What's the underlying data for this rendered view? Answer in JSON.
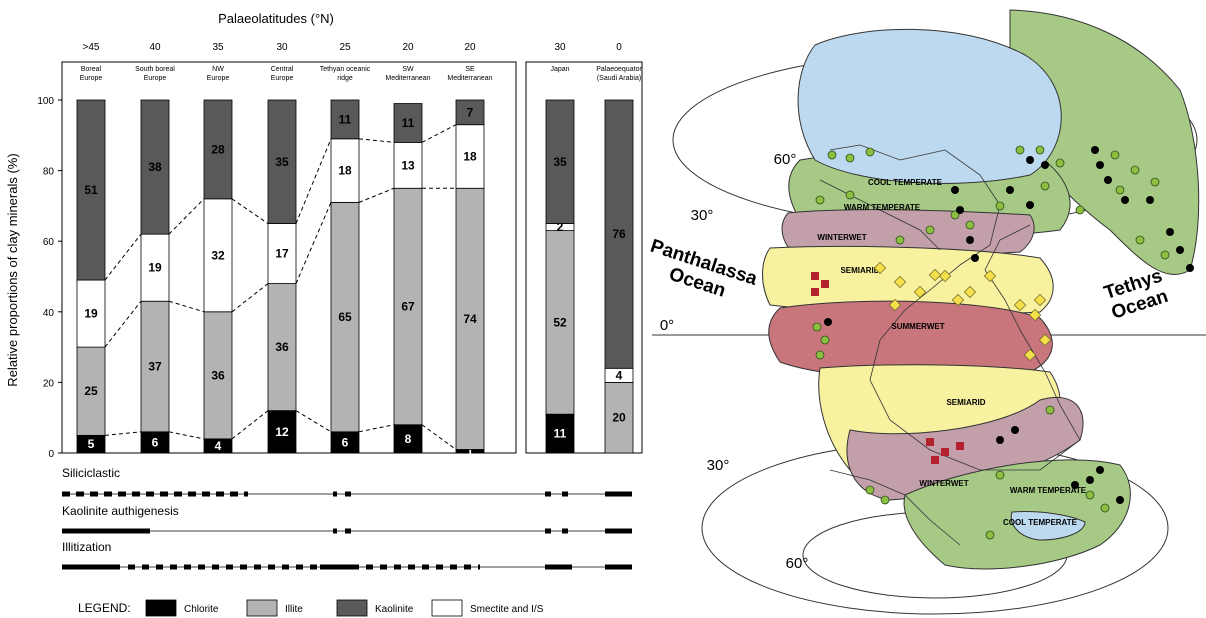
{
  "chart_data": {
    "type": "bar",
    "subtype": "stacked-100",
    "title": "Palaeolatitudes (°N)",
    "ylabel": "Relative proportions of clay minerals (%)",
    "ylim": [
      0,
      100
    ],
    "yticks": [
      0,
      20,
      40,
      60,
      80,
      100
    ],
    "colors": {
      "Chlorite": "#000000",
      "Illite": "#b3b3b3",
      "Smectite and I/S": "#ffffff",
      "Kaolinite": "#595959"
    },
    "stack_order": [
      "Chlorite",
      "Illite",
      "Smectite and I/S",
      "Kaolinite"
    ],
    "legend_prefix": "LEGEND:",
    "legend_order": [
      "Chlorite",
      "Illite",
      "Kaolinite",
      "Smectite and I/S"
    ],
    "legend_position": "bottom",
    "categories": [
      {
        "lat": ">45",
        "label": [
          "Boreal",
          "Europe"
        ],
        "values": [
          5,
          25,
          19,
          51
        ]
      },
      {
        "lat": "40",
        "label": [
          "South boreal",
          "Europe"
        ],
        "values": [
          6,
          37,
          19,
          38
        ]
      },
      {
        "lat": "35",
        "label": [
          "NW",
          "Europe"
        ],
        "values": [
          4,
          36,
          32,
          28
        ]
      },
      {
        "lat": "30",
        "label": [
          "Central",
          "Europe"
        ],
        "values": [
          12,
          36,
          17,
          35
        ]
      },
      {
        "lat": "25",
        "label": [
          "Tethyan oceanic",
          "ridge"
        ],
        "values": [
          6,
          65,
          18,
          11
        ]
      },
      {
        "lat": "20",
        "label": [
          "SW",
          "Mediterranean"
        ],
        "values": [
          8,
          67,
          13,
          11
        ]
      },
      {
        "lat": "20",
        "label": [
          "SE",
          "Mediterranean"
        ],
        "values": [
          1,
          74,
          18,
          7
        ]
      },
      {
        "lat": "30",
        "label": [
          "Japan"
        ],
        "values": [
          11,
          52,
          2,
          35
        ]
      },
      {
        "lat": "0",
        "label": [
          "Palaeoequator",
          "(Saudi Arabia)"
        ],
        "values": [
          0,
          20,
          4,
          76
        ]
      }
    ],
    "processes": [
      {
        "name": "Siliciclastic"
      },
      {
        "name": "Kaolinite authigenesis"
      },
      {
        "name": "Illitization"
      }
    ]
  },
  "map": {
    "oceans": [
      "Panthalassa\nOcean",
      "Tethys\nOcean"
    ],
    "latitudes": [
      "60°",
      "30°",
      "0°",
      "30°",
      "60°"
    ],
    "zones": [
      "COOL TEMPERATE",
      "WARM TEMPERATE",
      "WINTERWET",
      "SEMIARID",
      "SUMMERWET",
      "SEMIARID",
      "WINTERWET",
      "WARM TEMPERATE",
      "COOL TEMPERATE"
    ],
    "zone_colors": {
      "cool": "#bcd9ef",
      "warm": "#a6c986",
      "winterwet": "#c3a0a9",
      "semiarid": "#f7f1a0",
      "summerwet": "#c8767c"
    }
  }
}
